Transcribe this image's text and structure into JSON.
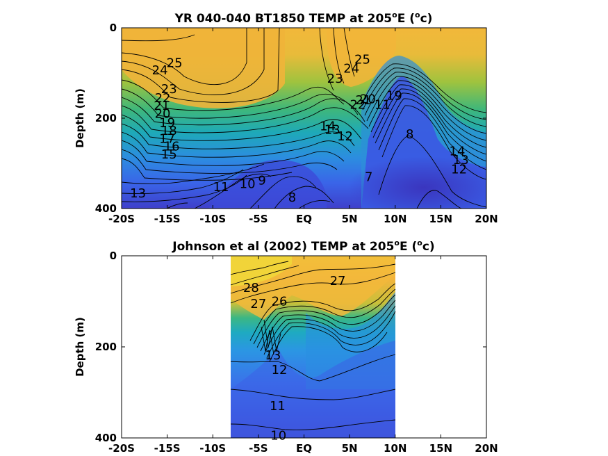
{
  "chart_data": [
    {
      "type": "contour",
      "title_main": "YR 040-040 BT1850 TEMP at 205",
      "title_sup": "o",
      "title_mid": "E (",
      "title_sup2": "o",
      "title_end": "c)",
      "ylabel": "Depth (m)",
      "xlim": [
        -20,
        20
      ],
      "ylim": [
        0,
        400
      ],
      "y_reversed": true,
      "x_ticks": [
        -20,
        -15,
        -10,
        -5,
        0,
        5,
        10,
        15,
        20
      ],
      "x_tick_labels": [
        "-20S",
        "-15S",
        "-10S",
        "-5S",
        "EQ",
        "5N",
        "10N",
        "15N",
        "20N"
      ],
      "y_ticks": [
        0,
        200,
        400
      ],
      "y_tick_labels": [
        "0",
        "200",
        "400"
      ],
      "data_extent_x": [
        -20,
        20
      ],
      "contour_labels": [
        {
          "text": "25",
          "x": -14.2,
          "y": 78
        },
        {
          "text": "24",
          "x": -15.8,
          "y": 94
        },
        {
          "text": "23",
          "x": -14.8,
          "y": 135
        },
        {
          "text": "22",
          "x": -15.5,
          "y": 155
        },
        {
          "text": "21",
          "x": -15.6,
          "y": 172
        },
        {
          "text": "20",
          "x": -15.5,
          "y": 190
        },
        {
          "text": "19",
          "x": -15.0,
          "y": 210
        },
        {
          "text": "18",
          "x": -14.8,
          "y": 228
        },
        {
          "text": "17",
          "x": -15.0,
          "y": 245
        },
        {
          "text": "16",
          "x": -14.5,
          "y": 262
        },
        {
          "text": "15",
          "x": -14.8,
          "y": 280
        },
        {
          "text": "13",
          "x": -18.2,
          "y": 366
        },
        {
          "text": "11",
          "x": -9.1,
          "y": 352
        },
        {
          "text": "10",
          "x": -6.2,
          "y": 345
        },
        {
          "text": "9",
          "x": -4.6,
          "y": 338
        },
        {
          "text": "8",
          "x": -1.3,
          "y": 375
        },
        {
          "text": "14",
          "x": 2.6,
          "y": 218
        },
        {
          "text": "13",
          "x": 3.1,
          "y": 225
        },
        {
          "text": "12",
          "x": 4.5,
          "y": 240
        },
        {
          "text": "25",
          "x": 6.4,
          "y": 70
        },
        {
          "text": "24",
          "x": 5.2,
          "y": 90
        },
        {
          "text": "23",
          "x": 3.4,
          "y": 112
        },
        {
          "text": "22",
          "x": 5.9,
          "y": 170
        },
        {
          "text": "21",
          "x": 6.5,
          "y": 160
        },
        {
          "text": "20",
          "x": 7.0,
          "y": 158
        },
        {
          "text": "19",
          "x": 9.9,
          "y": 150
        },
        {
          "text": "11",
          "x": 8.6,
          "y": 170
        },
        {
          "text": "8",
          "x": 11.6,
          "y": 235
        },
        {
          "text": "7",
          "x": 7.1,
          "y": 330
        },
        {
          "text": "14",
          "x": 16.8,
          "y": 273
        },
        {
          "text": "13",
          "x": 17.2,
          "y": 292
        },
        {
          "text": "12",
          "x": 17.0,
          "y": 313
        }
      ]
    },
    {
      "type": "contour",
      "title_main": "Johnson et al (2002) TEMP at 205",
      "title_sup": "o",
      "title_mid": "E (",
      "title_sup2": "o",
      "title_end": "c)",
      "ylabel": "Depth (m)",
      "xlim": [
        -20,
        20
      ],
      "ylim": [
        0,
        400
      ],
      "y_reversed": true,
      "x_ticks": [
        -20,
        -15,
        -10,
        -5,
        0,
        5,
        10,
        15,
        20
      ],
      "x_tick_labels": [
        "-20S",
        "-15S",
        "-10S",
        "-5S",
        "EQ",
        "5N",
        "10N",
        "15N",
        "20N"
      ],
      "y_ticks": [
        0,
        200,
        400
      ],
      "y_tick_labels": [
        "0",
        "200",
        "400"
      ],
      "data_extent_x": [
        -8,
        10
      ],
      "contour_labels": [
        {
          "text": "28",
          "x": -5.8,
          "y": 70
        },
        {
          "text": "27",
          "x": -5.0,
          "y": 105
        },
        {
          "text": "26",
          "x": -2.7,
          "y": 100
        },
        {
          "text": "27",
          "x": 3.7,
          "y": 55
        },
        {
          "text": "13",
          "x": -3.4,
          "y": 218
        },
        {
          "text": "12",
          "x": -2.7,
          "y": 250
        },
        {
          "text": "11",
          "x": -2.9,
          "y": 330
        },
        {
          "text": "10",
          "x": -2.8,
          "y": 395
        }
      ]
    }
  ]
}
